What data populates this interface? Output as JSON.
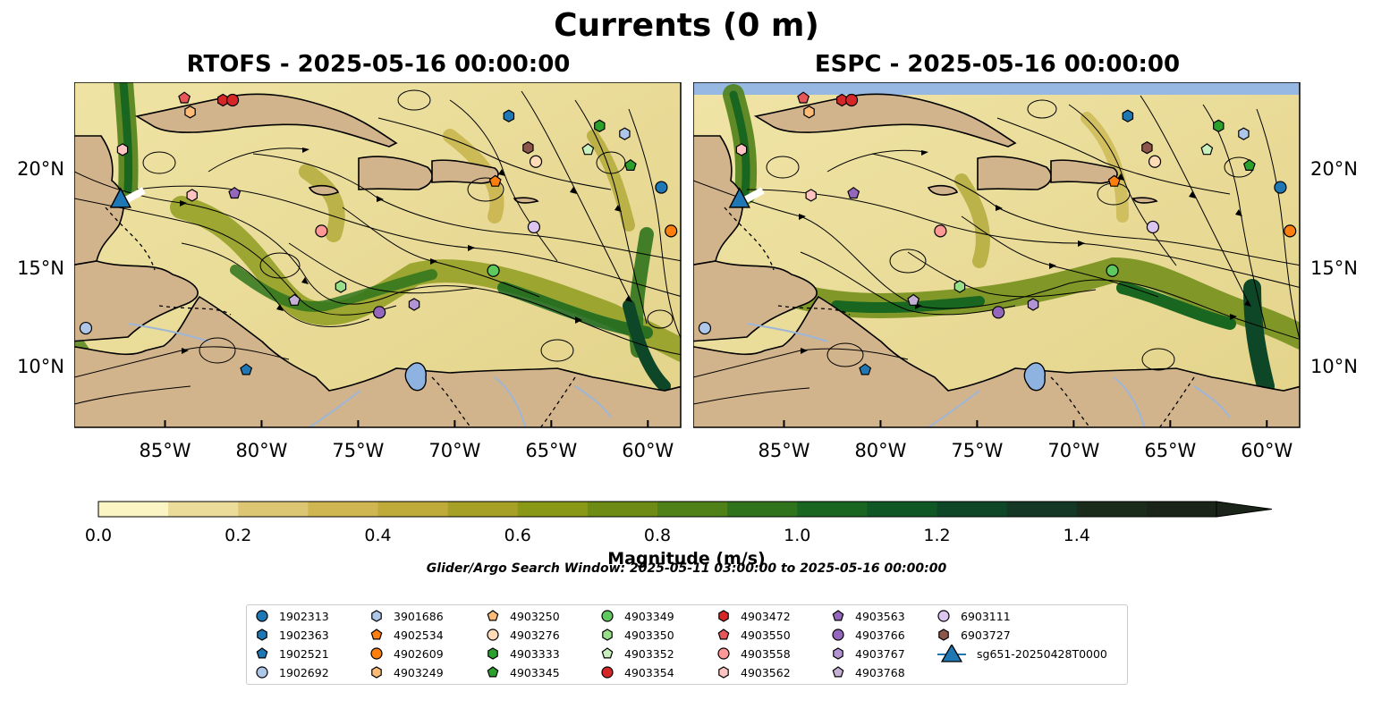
{
  "figure": {
    "title": "Currents (0 m)",
    "panels": [
      {
        "title": "RTOFS - 2025-05-16 00:00:00"
      },
      {
        "title": "ESPC - 2025-05-16 00:00:00"
      }
    ],
    "lon_ticks": [
      "85°W",
      "80°W",
      "75°W",
      "70°W",
      "65°W",
      "60°W"
    ],
    "lon_tick_values": [
      -85,
      -80,
      -75,
      -70,
      -65,
      -60
    ],
    "lat_ticks": [
      "20°N",
      "15°N",
      "10°N"
    ],
    "lat_tick_values": [
      20,
      15,
      10
    ],
    "extent": {
      "lon": [
        -89.7,
        -58.3
      ],
      "lat": [
        7.0,
        24.4
      ]
    },
    "ocean_color_low": "#fbf5c3",
    "land_color": "#d2b48c",
    "lake_color": "#8fb3e0"
  },
  "colorbar": {
    "label": "Magnitude (m/s)",
    "ticks": [
      "0.0",
      "0.2",
      "0.4",
      "0.6",
      "0.8",
      "1.0",
      "1.2",
      "1.4"
    ],
    "tick_values": [
      0.0,
      0.2,
      0.4,
      0.6,
      0.8,
      1.0,
      1.2,
      1.4
    ],
    "range": [
      0,
      1.6
    ],
    "levels": [
      0.0,
      0.1,
      0.2,
      0.3,
      0.4,
      0.5,
      0.6,
      0.7,
      0.8,
      0.9,
      1.0,
      1.1,
      1.2,
      1.3,
      1.4,
      1.5
    ],
    "colors": [
      "#fbf5c3",
      "#ebdc99",
      "#ddc673",
      "#d0b651",
      "#bfab3a",
      "#a6a026",
      "#8a9818",
      "#6e8c15",
      "#4f8118",
      "#2f741c",
      "#18661f",
      "#0f5725",
      "#0e4727",
      "#153725",
      "#1a2b1c",
      "#1a2419"
    ],
    "extend": "max"
  },
  "search_window": "Glider/Argo Search Window: 2025-05-11 03:00:00 to 2025-05-16 00:00:00",
  "legend": {
    "columns": [
      [
        {
          "id": "1902313",
          "marker": "circle",
          "color": "#1f77b4"
        },
        {
          "id": "1902363",
          "marker": "hexagon",
          "color": "#1f77b4"
        },
        {
          "id": "1902521",
          "marker": "pentagon",
          "color": "#1f77b4"
        },
        {
          "id": "1902692",
          "marker": "circle",
          "color": "#aec7e8"
        }
      ],
      [
        {
          "id": "3901686",
          "marker": "hexagon",
          "color": "#aec7e8"
        },
        {
          "id": "4902534",
          "marker": "pentagon",
          "color": "#ff7f0e"
        },
        {
          "id": "4902609",
          "marker": "circle",
          "color": "#ff7f0e"
        },
        {
          "id": "4903249",
          "marker": "hexagon",
          "color": "#ffbb78"
        }
      ],
      [
        {
          "id": "4903250",
          "marker": "pentagon",
          "color": "#ffbb78"
        },
        {
          "id": "4903276",
          "marker": "circle",
          "color": "#ffdcb8"
        },
        {
          "id": "4903333",
          "marker": "hexagon",
          "color": "#2ca02c"
        },
        {
          "id": "4903345",
          "marker": "pentagon",
          "color": "#2ca02c"
        }
      ],
      [
        {
          "id": "4903349",
          "marker": "circle",
          "color": "#5fc95f"
        },
        {
          "id": "4903350",
          "marker": "hexagon",
          "color": "#98df8a"
        },
        {
          "id": "4903352",
          "marker": "pentagon",
          "color": "#c8f0bc"
        },
        {
          "id": "4903354",
          "marker": "circle",
          "color": "#d62728"
        }
      ],
      [
        {
          "id": "4903472",
          "marker": "hexagon",
          "color": "#d62728"
        },
        {
          "id": "4903550",
          "marker": "pentagon",
          "color": "#e7575a"
        },
        {
          "id": "4903558",
          "marker": "circle",
          "color": "#ff9896"
        },
        {
          "id": "4903562",
          "marker": "hexagon",
          "color": "#ffc4c2"
        }
      ],
      [
        {
          "id": "4903563",
          "marker": "pentagon",
          "color": "#9467bd"
        },
        {
          "id": "4903766",
          "marker": "circle",
          "color": "#9467bd"
        },
        {
          "id": "4903767",
          "marker": "hexagon",
          "color": "#b294d4"
        },
        {
          "id": "4903768",
          "marker": "pentagon",
          "color": "#c5b0d5"
        }
      ],
      [
        {
          "id": "6903111",
          "marker": "circle",
          "color": "#dcc5ef"
        },
        {
          "id": "6903727",
          "marker": "hexagon",
          "color": "#8c564b"
        },
        {
          "id": "sg651-20250428T0000",
          "marker": "triangle",
          "color": "#1f77b4"
        }
      ]
    ]
  },
  "floats": [
    {
      "id": "4903472",
      "lon": -82.0,
      "lat": 23.5
    },
    {
      "id": "4903550",
      "lon": -84.0,
      "lat": 23.6
    },
    {
      "id": "4903354",
      "lon": -81.5,
      "lat": 23.5
    },
    {
      "id": "4903249",
      "lon": -83.7,
      "lat": 22.9
    },
    {
      "id": "4903562",
      "lon": -87.2,
      "lat": 21.0
    },
    {
      "id": "4903562",
      "lon": -83.6,
      "lat": 18.7
    },
    {
      "id": "4903563",
      "lon": -81.4,
      "lat": 18.8
    },
    {
      "id": "1902363",
      "lon": -67.2,
      "lat": 22.7
    },
    {
      "id": "4903333",
      "lon": -62.5,
      "lat": 22.2
    },
    {
      "id": "3901686",
      "lon": -61.2,
      "lat": 21.8
    },
    {
      "id": "6903727",
      "lon": -66.2,
      "lat": 21.1
    },
    {
      "id": "4903352",
      "lon": -63.1,
      "lat": 21.0
    },
    {
      "id": "4903276",
      "lon": -65.8,
      "lat": 20.4
    },
    {
      "id": "4903345",
      "lon": -60.9,
      "lat": 20.2
    },
    {
      "id": "4902534",
      "lon": -67.9,
      "lat": 19.4
    },
    {
      "id": "1902313",
      "lon": -59.3,
      "lat": 19.1
    },
    {
      "id": "6903111",
      "lon": -65.9,
      "lat": 17.1
    },
    {
      "id": "4903558",
      "lon": -76.9,
      "lat": 16.9
    },
    {
      "id": "4902609",
      "lon": -58.8,
      "lat": 16.9
    },
    {
      "id": "4903349",
      "lon": -68.0,
      "lat": 14.9
    },
    {
      "id": "4903350",
      "lon": -75.9,
      "lat": 14.1
    },
    {
      "id": "4903768",
      "lon": -78.3,
      "lat": 13.4
    },
    {
      "id": "4903766",
      "lon": -73.9,
      "lat": 12.8
    },
    {
      "id": "4903767",
      "lon": -72.1,
      "lat": 13.2
    },
    {
      "id": "1902692",
      "lon": -89.1,
      "lat": 12.0
    },
    {
      "id": "1902521",
      "lon": -80.8,
      "lat": 9.9
    }
  ],
  "glider": {
    "id": "sg651-20250428T0000",
    "lon": -87.3,
    "lat": 18.5
  }
}
